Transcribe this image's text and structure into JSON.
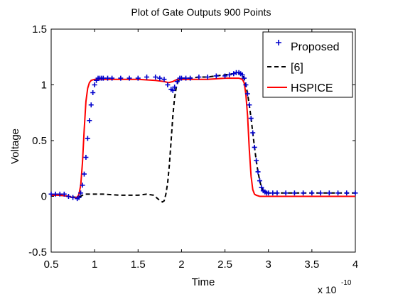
{
  "chart_data": {
    "type": "line",
    "title": "Plot of Gate Outputs 900 Points",
    "xlabel": "Time",
    "ylabel": "Voltage",
    "x_exponent_label": "x 10",
    "x_exponent": "-10",
    "xlim": [
      0.5,
      4
    ],
    "ylim": [
      -0.5,
      1.5
    ],
    "xticks": [
      0.5,
      1,
      1.5,
      2,
      2.5,
      3,
      3.5,
      4
    ],
    "xtick_labels": [
      "0.5",
      "1",
      "1.5",
      "2",
      "2.5",
      "3",
      "3.5",
      "4"
    ],
    "yticks": [
      -0.5,
      0,
      0.5,
      1,
      1.5
    ],
    "ytick_labels": [
      "-0.5",
      "0",
      "0.5",
      "1",
      "1.5"
    ],
    "grid": false,
    "legend_position": "top-right",
    "series": [
      {
        "name": "Proposed",
        "color": "#0000cc",
        "marker": "plus",
        "x": [
          0.5,
          0.55,
          0.6,
          0.65,
          0.7,
          0.75,
          0.8,
          0.82,
          0.84,
          0.86,
          0.88,
          0.9,
          0.92,
          0.94,
          0.96,
          0.98,
          1.0,
          1.02,
          1.04,
          1.06,
          1.08,
          1.1,
          1.15,
          1.2,
          1.3,
          1.4,
          1.5,
          1.6,
          1.7,
          1.75,
          1.8,
          1.84,
          1.88,
          1.9,
          1.92,
          1.95,
          1.98,
          2.0,
          2.05,
          2.1,
          2.2,
          2.3,
          2.4,
          2.5,
          2.55,
          2.6,
          2.63,
          2.66,
          2.68,
          2.7,
          2.72,
          2.74,
          2.76,
          2.78,
          2.8,
          2.82,
          2.84,
          2.86,
          2.88,
          2.9,
          2.92,
          2.94,
          2.96,
          2.98,
          3.0,
          3.05,
          3.1,
          3.2,
          3.3,
          3.4,
          3.5,
          3.6,
          3.7,
          3.8,
          3.9,
          4.0
        ],
        "y": [
          0.02,
          0.02,
          0.02,
          0.02,
          0.0,
          -0.01,
          -0.02,
          -0.01,
          0.03,
          0.1,
          0.2,
          0.35,
          0.52,
          0.68,
          0.82,
          0.93,
          1.0,
          1.04,
          1.06,
          1.06,
          1.06,
          1.06,
          1.06,
          1.06,
          1.06,
          1.06,
          1.06,
          1.07,
          1.07,
          1.06,
          1.05,
          1.0,
          0.96,
          0.95,
          0.98,
          1.03,
          1.06,
          1.06,
          1.06,
          1.06,
          1.07,
          1.07,
          1.08,
          1.08,
          1.09,
          1.1,
          1.11,
          1.11,
          1.1,
          1.09,
          1.06,
          1.0,
          0.92,
          0.82,
          0.7,
          0.57,
          0.44,
          0.32,
          0.22,
          0.14,
          0.08,
          0.05,
          0.04,
          0.03,
          0.03,
          0.03,
          0.03,
          0.03,
          0.03,
          0.03,
          0.03,
          0.03,
          0.03,
          0.03,
          0.03,
          0.03
        ]
      },
      {
        "name": "[6]",
        "color": "#000000",
        "marker": "none",
        "line_style": "dashed",
        "x": [
          0.5,
          0.6,
          0.7,
          0.8,
          0.84,
          0.88,
          0.95,
          1.1,
          1.3,
          1.5,
          1.6,
          1.68,
          1.74,
          1.78,
          1.8,
          1.82,
          1.84,
          1.86,
          1.88,
          1.9,
          1.92,
          1.94,
          1.96,
          1.98,
          2.0,
          2.05,
          2.1,
          2.2,
          2.3,
          2.4,
          2.5,
          2.6,
          2.63,
          2.66,
          2.68,
          2.7,
          2.72,
          2.74,
          2.76,
          2.78,
          2.8,
          2.82,
          2.84,
          2.86,
          2.88,
          2.9,
          2.92,
          2.94,
          2.96,
          3.0,
          3.1,
          3.2,
          3.4,
          3.6,
          3.8,
          4.0
        ],
        "y": [
          0.01,
          0.01,
          0.0,
          -0.01,
          0.0,
          0.02,
          0.02,
          0.02,
          0.01,
          0.01,
          0.02,
          0.01,
          -0.03,
          -0.05,
          -0.04,
          0.02,
          0.12,
          0.28,
          0.5,
          0.72,
          0.88,
          0.98,
          1.03,
          1.05,
          1.06,
          1.06,
          1.06,
          1.07,
          1.07,
          1.08,
          1.09,
          1.1,
          1.11,
          1.11,
          1.1,
          1.09,
          1.06,
          1.0,
          0.92,
          0.82,
          0.7,
          0.57,
          0.44,
          0.32,
          0.22,
          0.14,
          0.08,
          0.05,
          0.04,
          0.03,
          0.03,
          0.03,
          0.03,
          0.03,
          0.03,
          0.03
        ]
      },
      {
        "name": "HSPICE",
        "color": "#ff0000",
        "marker": "none",
        "line_style": "solid",
        "x": [
          0.5,
          0.6,
          0.7,
          0.75,
          0.8,
          0.82,
          0.84,
          0.86,
          0.88,
          0.9,
          0.92,
          0.94,
          0.96,
          0.98,
          1.0,
          1.05,
          1.1,
          1.2,
          1.5,
          1.7,
          1.8,
          1.85,
          1.9,
          1.95,
          2.0,
          2.3,
          2.5,
          2.6,
          2.66,
          2.7,
          2.72,
          2.74,
          2.76,
          2.78,
          2.8,
          2.82,
          2.84,
          2.86,
          2.9,
          3.0,
          3.2,
          3.5,
          4.0
        ],
        "y": [
          0.01,
          0.01,
          0.0,
          -0.01,
          -0.01,
          0.02,
          0.1,
          0.3,
          0.6,
          0.85,
          0.97,
          1.02,
          1.04,
          1.045,
          1.05,
          1.05,
          1.05,
          1.05,
          1.05,
          1.04,
          1.03,
          1.02,
          1.03,
          1.05,
          1.05,
          1.05,
          1.06,
          1.06,
          1.06,
          1.05,
          1.02,
          0.92,
          0.72,
          0.42,
          0.18,
          0.06,
          0.02,
          0.01,
          0.0,
          0.0,
          0.0,
          0.0,
          0.0
        ]
      }
    ]
  }
}
